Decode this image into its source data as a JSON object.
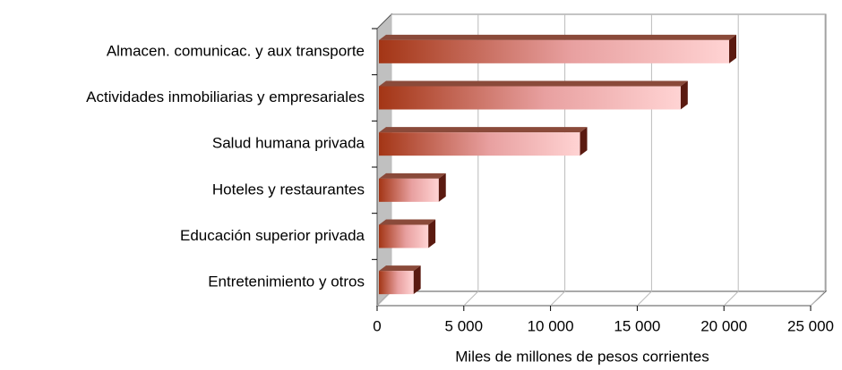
{
  "chart_data": {
    "type": "bar",
    "orientation": "horizontal",
    "categories": [
      "Almacen. comunicac. y aux transporte",
      "Actividades inmobiliarias y empresariales",
      "Salud humana privada",
      "Hoteles y restaurantes",
      "Educación superior privada",
      "Entretenimiento y otros"
    ],
    "values": [
      20300,
      17500,
      11700,
      3550,
      2950,
      2100
    ],
    "color": "#a33515",
    "xlabel": "Miles de millones de pesos corrientes",
    "xlim": [
      0,
      25000
    ],
    "xticks": [
      0,
      {
        "value": 5000,
        "label": "5 000"
      },
      {
        "value": 10000,
        "label": "10 000"
      },
      {
        "value": 15000,
        "label": "15 000"
      },
      {
        "value": 20000,
        "label": "20 000"
      },
      {
        "value": 25000,
        "label": "25 000"
      }
    ],
    "grid": true
  }
}
